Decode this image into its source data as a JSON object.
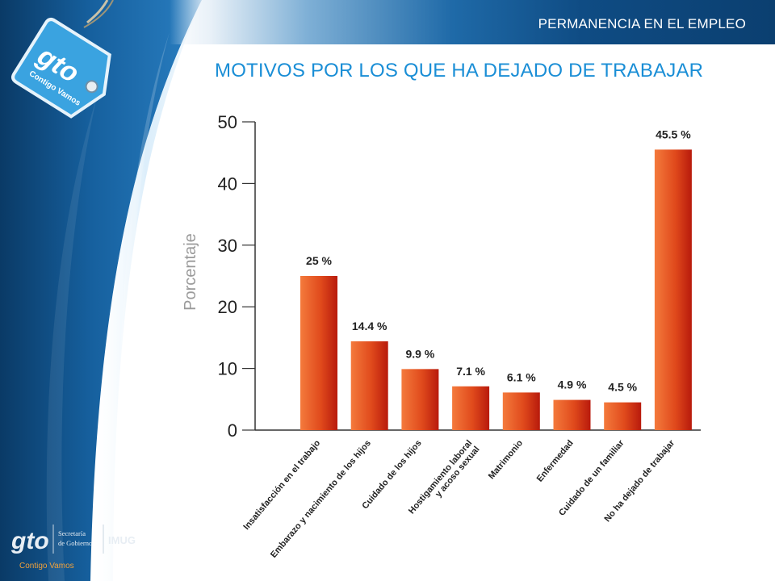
{
  "header": {
    "section_title": "PERMANENCIA EN EL EMPLEO",
    "chart_title": "MOTIVOS POR LOS QUE HA DEJADO DE TRABAJAR"
  },
  "branding": {
    "tag_logo_text": "gto",
    "tag_logo_subtext": "Contigo Vamos",
    "footer_logo_text": "gto",
    "footer_org_line1": "Secretaría",
    "footer_org_line2": "de Gobierno",
    "footer_org2": "IMUG",
    "footer_slogan": "Contigo Vamos"
  },
  "colors": {
    "bar_light": "#f47a3c",
    "bar_dark": "#b81a0c",
    "title_blue": "#1a8ed6",
    "header_navy": "#0b3f70"
  },
  "chart_data": {
    "type": "bar",
    "title": "MOTIVOS POR LOS QUE HA DEJADO DE TRABAJAR",
    "xlabel": "",
    "ylabel": "Porcentaje",
    "ylim": [
      0,
      50
    ],
    "yticks": [
      0,
      10,
      20,
      30,
      40,
      50
    ],
    "grid": false,
    "categories": [
      [
        "Insatisfacción en el trabajo"
      ],
      [
        "Embarazo y nacimiento de los hijos"
      ],
      [
        "Cuidado de los hijos"
      ],
      [
        "Hostigamiento laboral",
        "y acoso sexual"
      ],
      [
        "Matrimonio"
      ],
      [
        "Enfermedad"
      ],
      [
        "Cuidado de un familiar"
      ],
      [
        "No ha dejado de trabajar"
      ]
    ],
    "values": [
      25,
      14.4,
      9.9,
      7.1,
      6.1,
      4.9,
      4.5,
      45.5
    ],
    "data_labels": [
      "25 %",
      "14.4 %",
      "9.9 %",
      "7.1 %",
      "6.1 %",
      "4.9 %",
      "4.5 %",
      "45.5 %"
    ]
  }
}
